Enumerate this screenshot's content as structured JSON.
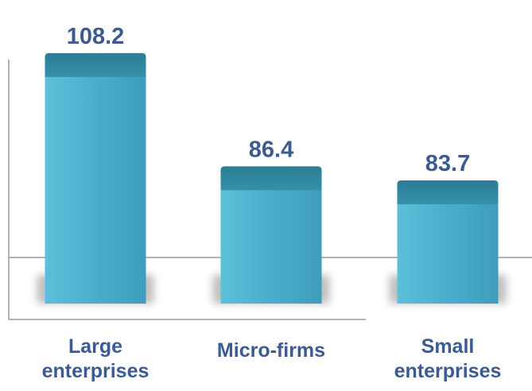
{
  "chart_data": {
    "type": "bar",
    "categories": [
      "Large enterprises",
      "Micro-firms",
      "Small enterprises"
    ],
    "category_lines": [
      [
        "Large",
        "enterprises"
      ],
      [
        "Micro-firms"
      ],
      [
        "Small",
        "enterprises"
      ]
    ],
    "values": [
      108.2,
      86.4,
      83.7
    ],
    "value_labels": [
      "108.2",
      "86.4",
      "83.7"
    ],
    "title": "",
    "xlabel": "",
    "ylabel": "",
    "ylim": [
      60,
      112
    ],
    "grid": false,
    "legend": "none",
    "colors": {
      "bar_face": "#4aaecb",
      "bar_top": "#2f8aa3",
      "label_text": "#3b5b92",
      "axis": "#9a9a9a"
    }
  }
}
